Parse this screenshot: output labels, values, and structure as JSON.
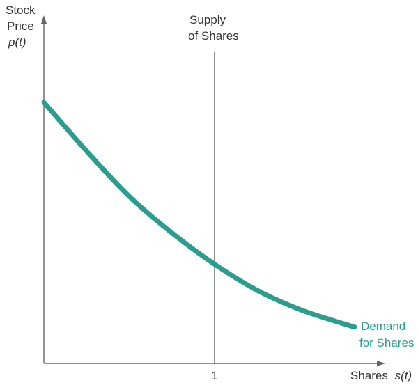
{
  "chart_data": {
    "type": "line",
    "y_axis": {
      "label_line1": "Stock",
      "label_line2": "Price",
      "label_line3": "p(t)"
    },
    "x_axis": {
      "label_text": "Shares",
      "label_var": "s(t)",
      "ticks": [
        {
          "value": 1,
          "label": "1"
        }
      ]
    },
    "xlim": [
      0,
      2
    ],
    "ylim": [
      0,
      1
    ],
    "supply": {
      "label_line1": "Supply",
      "label_line2": "of Shares",
      "x": 1
    },
    "demand": {
      "label_line1": "Demand",
      "label_line2": "for Shares",
      "points": [
        {
          "x": 0.0,
          "y": 0.75
        },
        {
          "x": 0.25,
          "y": 0.61
        },
        {
          "x": 0.5,
          "y": 0.48
        },
        {
          "x": 0.75,
          "y": 0.375
        },
        {
          "x": 1.0,
          "y": 0.285
        },
        {
          "x": 1.25,
          "y": 0.21
        },
        {
          "x": 1.5,
          "y": 0.155
        },
        {
          "x": 1.75,
          "y": 0.115
        },
        {
          "x": 1.82,
          "y": 0.105
        }
      ]
    },
    "colors": {
      "axis": "#666666",
      "demand": "#2a9d8f",
      "supply": "#555555",
      "text": "#333333"
    }
  }
}
